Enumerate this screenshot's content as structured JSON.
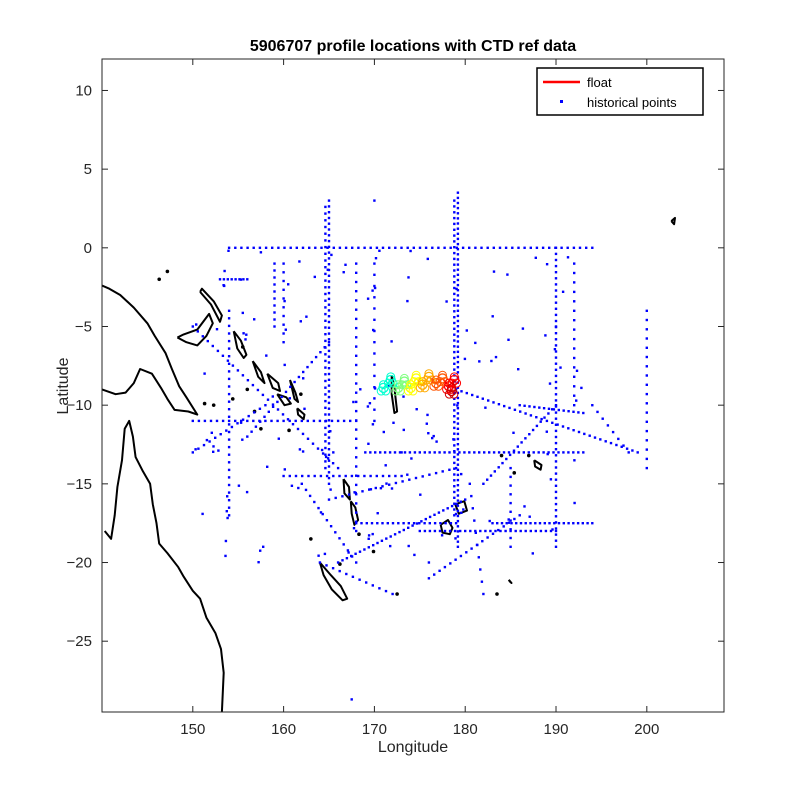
{
  "chart_data": {
    "type": "scatter",
    "title": "5906707 profile locations with CTD ref data",
    "xlabel": "Longitude",
    "ylabel": "Latitude",
    "xlim": [
      140,
      208.5
    ],
    "ylim": [
      -29.5,
      12
    ],
    "xticks": [
      150,
      160,
      170,
      180,
      190,
      200
    ],
    "yticks": [
      10,
      5,
      0,
      -5,
      -10,
      -15,
      -20,
      -25
    ],
    "grid": false,
    "legend": {
      "placement": "top-right",
      "entries": [
        {
          "label": "float",
          "style": "line",
          "color": "#ff0000"
        },
        {
          "label": "historical points",
          "style": "point",
          "color": "#0000ff"
        }
      ]
    },
    "historical_color": "#0000ff",
    "coast_color": "#000000",
    "historical_tracks": [
      {
        "from": [
          154,
          0
        ],
        "to": [
          194,
          0
        ],
        "n": 60
      },
      {
        "from": [
          165,
          3
        ],
        "to": [
          165,
          -15
        ],
        "n": 50
      },
      {
        "from": [
          164.6,
          2.6
        ],
        "to": [
          164.6,
          -14
        ],
        "n": 40
      },
      {
        "from": [
          179.2,
          3.5
        ],
        "to": [
          179.2,
          -19
        ],
        "n": 70
      },
      {
        "from": [
          178.8,
          3
        ],
        "to": [
          178.8,
          -17
        ],
        "n": 55
      },
      {
        "from": [
          190,
          0
        ],
        "to": [
          190,
          -19
        ],
        "n": 50
      },
      {
        "from": [
          200,
          -4
        ],
        "to": [
          200,
          -14
        ],
        "n": 18
      },
      {
        "from": [
          192,
          -1
        ],
        "to": [
          192,
          -10
        ],
        "n": 16
      },
      {
        "from": [
          168,
          -1
        ],
        "to": [
          168,
          -18
        ],
        "n": 30
      },
      {
        "from": [
          154,
          -4
        ],
        "to": [
          154,
          -17
        ],
        "n": 28
      },
      {
        "from": [
          159,
          -1
        ],
        "to": [
          159,
          -5
        ],
        "n": 10
      },
      {
        "from": [
          160,
          -1
        ],
        "to": [
          160,
          -6
        ],
        "n": 10
      },
      {
        "from": [
          169,
          -13
        ],
        "to": [
          193,
          -13
        ],
        "n": 45
      },
      {
        "from": [
          160,
          -14.5
        ],
        "to": [
          173,
          -14.5
        ],
        "n": 20
      },
      {
        "from": [
          150,
          -11
        ],
        "to": [
          168,
          -11
        ],
        "n": 28
      },
      {
        "from": [
          175,
          -18
        ],
        "to": [
          190,
          -18
        ],
        "n": 28
      },
      {
        "from": [
          165,
          -16
        ],
        "to": [
          179,
          -14
        ],
        "n": 20
      },
      {
        "from": [
          183,
          -17.5
        ],
        "to": [
          194,
          -17.5
        ],
        "n": 22
      },
      {
        "from": [
          168,
          -17.5
        ],
        "to": [
          179,
          -17.5
        ],
        "n": 20
      },
      {
        "from": [
          150,
          -5
        ],
        "to": [
          166,
          -14
        ],
        "n": 30
      },
      {
        "from": [
          166,
          -20
        ],
        "to": [
          180,
          -16
        ],
        "n": 30
      },
      {
        "from": [
          179,
          -9
        ],
        "to": [
          199,
          -13
        ],
        "n": 35
      },
      {
        "from": [
          182,
          -15
        ],
        "to": [
          190,
          -10
        ],
        "n": 20
      },
      {
        "from": [
          186,
          -10
        ],
        "to": [
          193,
          -10.5
        ],
        "n": 14
      },
      {
        "from": [
          176,
          -21
        ],
        "to": [
          186,
          -17
        ],
        "n": 18
      },
      {
        "from": [
          164,
          -20
        ],
        "to": [
          172,
          -22
        ],
        "n": 12
      },
      {
        "from": [
          156,
          -12
        ],
        "to": [
          165,
          -6
        ],
        "n": 20
      },
      {
        "from": [
          150,
          -13
        ],
        "to": [
          158,
          -10
        ],
        "n": 14
      },
      {
        "from": [
          153,
          -2
        ],
        "to": [
          156,
          -2
        ],
        "n": 8
      },
      {
        "from": [
          162,
          -15
        ],
        "to": [
          168,
          -20
        ],
        "n": 14
      },
      {
        "from": [
          170,
          -1
        ],
        "to": [
          170,
          -11
        ],
        "n": 15
      },
      {
        "from": [
          180.5,
          -15
        ],
        "to": [
          182,
          -22
        ],
        "n": 10
      },
      {
        "from": [
          185,
          -14
        ],
        "to": [
          185,
          -19
        ],
        "n": 10
      },
      {
        "from": [
          194,
          -10
        ],
        "to": [
          198,
          -13
        ],
        "n": 8
      }
    ],
    "historical_scatter": {
      "xrange": [
        150,
        194
      ],
      "yrange": [
        -20,
        0
      ],
      "n": 160,
      "seed": 7
    },
    "historical_points_extra": [
      [
        167.5,
        -28.7
      ],
      [
        170,
        3
      ],
      [
        190,
        -5
      ],
      [
        173,
        -13
      ],
      [
        176,
        -20
      ]
    ],
    "float_colors": [
      "#00ffd0",
      "#7fff7f",
      "#ffff00",
      "#ffaa00",
      "#ff5500",
      "#ff0000",
      "#cc0000"
    ],
    "float_track": [
      {
        "lon": 171.0,
        "lat": -8.9
      },
      {
        "lon": 171.8,
        "lat": -8.4
      },
      {
        "lon": 172.6,
        "lat": -8.9
      },
      {
        "lon": 173.3,
        "lat": -8.5
      },
      {
        "lon": 174.0,
        "lat": -8.9
      },
      {
        "lon": 174.6,
        "lat": -8.3
      },
      {
        "lon": 175.3,
        "lat": -8.7
      },
      {
        "lon": 176.0,
        "lat": -8.2
      },
      {
        "lon": 176.8,
        "lat": -8.6
      },
      {
        "lon": 177.5,
        "lat": -8.3
      },
      {
        "lon": 178.2,
        "lat": -8.8
      },
      {
        "lon": 178.8,
        "lat": -8.4
      },
      {
        "lon": 178.5,
        "lat": -9.1
      }
    ],
    "coastlines": [
      [
        [
          153.2,
          -29.5
        ],
        [
          153.4,
          -27
        ],
        [
          153.1,
          -25.5
        ],
        [
          152.5,
          -24.5
        ],
        [
          151.5,
          -23.5
        ],
        [
          150.8,
          -22.3
        ],
        [
          150.0,
          -21.8
        ],
        [
          149.0,
          -20.9
        ],
        [
          148.4,
          -20.3
        ],
        [
          147.2,
          -19.4
        ],
        [
          146.3,
          -18.8
        ],
        [
          146.0,
          -17.5
        ],
        [
          145.6,
          -16.3
        ],
        [
          145.3,
          -15.0
        ],
        [
          144.5,
          -14.2
        ],
        [
          143.7,
          -13.3
        ],
        [
          143.4,
          -12.0
        ],
        [
          143.0,
          -11.0
        ],
        [
          142.5,
          -11.5
        ],
        [
          142.2,
          -13.5
        ],
        [
          141.7,
          -15.2
        ],
        [
          141.4,
          -17.0
        ],
        [
          141.0,
          -18.5
        ],
        [
          140.3,
          -18.0
        ]
      ],
      [
        [
          140.0,
          -9.0
        ],
        [
          141.5,
          -9.3
        ],
        [
          142.6,
          -9.2
        ],
        [
          143.5,
          -8.6
        ],
        [
          144.2,
          -7.7
        ],
        [
          145.5,
          -8.0
        ],
        [
          146.5,
          -8.9
        ],
        [
          147.2,
          -9.6
        ],
        [
          148.0,
          -10.3
        ],
        [
          149.5,
          -10.4
        ],
        [
          150.5,
          -10.6
        ],
        [
          149.3,
          -9.5
        ],
        [
          148.5,
          -8.8
        ],
        [
          147.7,
          -7.7
        ],
        [
          147.0,
          -6.7
        ],
        [
          145.8,
          -5.6
        ],
        [
          145.0,
          -4.8
        ],
        [
          143.5,
          -3.8
        ],
        [
          142.0,
          -3.0
        ],
        [
          140.8,
          -2.6
        ],
        [
          140.0,
          -2.4
        ]
      ],
      [
        [
          148.3,
          -5.7
        ],
        [
          149.3,
          -6.0
        ],
        [
          150.5,
          -6.2
        ],
        [
          151.5,
          -5.6
        ],
        [
          152.2,
          -4.8
        ],
        [
          151.8,
          -4.2
        ],
        [
          150.5,
          -5.2
        ],
        [
          149.0,
          -5.5
        ],
        [
          148.3,
          -5.7
        ]
      ],
      [
        [
          150.8,
          -2.8
        ],
        [
          152.0,
          -3.6
        ],
        [
          153.0,
          -4.7
        ],
        [
          153.2,
          -4.3
        ],
        [
          152.3,
          -3.4
        ],
        [
          151.0,
          -2.6
        ],
        [
          150.8,
          -2.8
        ]
      ],
      [
        [
          154.5,
          -5.3
        ],
        [
          155.3,
          -5.9
        ],
        [
          155.9,
          -6.8
        ],
        [
          155.6,
          -7.0
        ],
        [
          154.9,
          -6.4
        ],
        [
          154.5,
          -5.3
        ]
      ],
      [
        [
          156.6,
          -7.2
        ],
        [
          157.5,
          -7.9
        ],
        [
          157.9,
          -8.6
        ],
        [
          157.2,
          -8.2
        ],
        [
          156.6,
          -7.2
        ]
      ],
      [
        [
          158.2,
          -8.0
        ],
        [
          159.4,
          -8.6
        ],
        [
          159.6,
          -9.1
        ],
        [
          158.8,
          -8.9
        ],
        [
          158.2,
          -8.0
        ]
      ],
      [
        [
          159.3,
          -9.3
        ],
        [
          160.3,
          -9.5
        ],
        [
          160.8,
          -9.9
        ],
        [
          160.1,
          -10.0
        ],
        [
          159.3,
          -9.3
        ]
      ],
      [
        [
          160.7,
          -8.4
        ],
        [
          161.3,
          -9.2
        ],
        [
          161.6,
          -9.8
        ],
        [
          161.2,
          -9.6
        ],
        [
          160.7,
          -8.4
        ]
      ],
      [
        [
          161.5,
          -10.2
        ],
        [
          162.3,
          -10.6
        ],
        [
          162.2,
          -10.9
        ],
        [
          161.6,
          -10.6
        ],
        [
          161.5,
          -10.2
        ]
      ],
      [
        [
          166.6,
          -14.7
        ],
        [
          167.2,
          -15.2
        ],
        [
          167.3,
          -16.0
        ],
        [
          166.7,
          -15.6
        ],
        [
          166.6,
          -14.7
        ]
      ],
      [
        [
          167.4,
          -16.1
        ],
        [
          167.9,
          -16.5
        ],
        [
          168.2,
          -17.3
        ],
        [
          167.8,
          -17.6
        ],
        [
          167.5,
          -16.9
        ],
        [
          167.4,
          -16.1
        ]
      ],
      [
        [
          164.0,
          -20.0
        ],
        [
          165.2,
          -20.8
        ],
        [
          166.3,
          -21.5
        ],
        [
          167.0,
          -22.3
        ],
        [
          166.5,
          -22.4
        ],
        [
          165.3,
          -21.7
        ],
        [
          164.4,
          -20.8
        ],
        [
          164.0,
          -20.0
        ]
      ],
      [
        [
          177.3,
          -17.6
        ],
        [
          178.1,
          -17.3
        ],
        [
          178.6,
          -17.8
        ],
        [
          178.3,
          -18.2
        ],
        [
          177.5,
          -18.1
        ],
        [
          177.3,
          -17.6
        ]
      ],
      [
        [
          178.9,
          -16.3
        ],
        [
          179.9,
          -16.1
        ],
        [
          180.2,
          -16.7
        ],
        [
          179.3,
          -16.9
        ],
        [
          178.9,
          -16.3
        ]
      ],
      [
        [
          171.9,
          -8.1
        ],
        [
          172.2,
          -8.9
        ],
        [
          172.5,
          -10.4
        ],
        [
          172.2,
          -10.5
        ],
        [
          171.9,
          -9.3
        ],
        [
          171.9,
          -8.1
        ]
      ],
      [
        [
          187.6,
          -13.5
        ],
        [
          188.4,
          -13.8
        ],
        [
          188.3,
          -14.1
        ],
        [
          187.7,
          -13.9
        ],
        [
          187.6,
          -13.5
        ]
      ],
      [
        [
          184.8,
          -21.1
        ],
        [
          185.1,
          -21.3
        ],
        [
          184.9,
          -21.2
        ],
        [
          184.8,
          -21.1
        ]
      ],
      [
        [
          202.7,
          1.7
        ],
        [
          203.1,
          1.9
        ],
        [
          203.0,
          1.5
        ],
        [
          202.7,
          1.7
        ]
      ]
    ],
    "coast_dots": [
      [
        146.3,
        -2.0
      ],
      [
        147.2,
        -1.5
      ],
      [
        155.5,
        -6.3
      ],
      [
        156.0,
        -9.0
      ],
      [
        157.5,
        -11.5
      ],
      [
        163.0,
        -18.5
      ],
      [
        166.2,
        -20.1
      ],
      [
        168.3,
        -18.2
      ],
      [
        169.9,
        -19.3
      ],
      [
        172.5,
        -22.0
      ],
      [
        183.5,
        -22.0
      ],
      [
        184.0,
        -13.2
      ],
      [
        187.0,
        -13.2
      ],
      [
        185.4,
        -14.3
      ],
      [
        161.9,
        -9.3
      ],
      [
        160.6,
        -11.6
      ],
      [
        151.3,
        -9.9
      ],
      [
        152.3,
        -10.0
      ],
      [
        156.8,
        -10.4
      ],
      [
        154.4,
        -9.6
      ]
    ]
  }
}
